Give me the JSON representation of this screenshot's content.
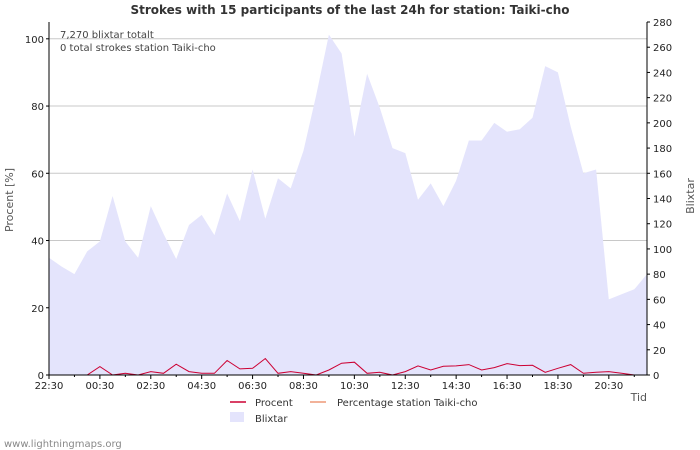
{
  "chart_data": {
    "type": "area",
    "title": "Strokes with 15 participants of the last 24h for station: Taiki-cho",
    "ylabel_left": "Procent   [%]",
    "ylabel_right": "Blixtar",
    "xlabel": "Tid",
    "ylim_left": [
      0,
      105
    ],
    "ylim_right": [
      0,
      280
    ],
    "yticks_left": [
      0,
      20,
      40,
      60,
      80,
      100
    ],
    "yticks_right": [
      0,
      20,
      40,
      60,
      80,
      100,
      120,
      140,
      160,
      180,
      200,
      220,
      240,
      260,
      280
    ],
    "x_tick_labels": [
      "22:30",
      "00:30",
      "02:30",
      "04:30",
      "06:30",
      "08:30",
      "10:30",
      "12:30",
      "14:30",
      "16:30",
      "18:30",
      "20:30"
    ],
    "x_range_hours": [
      0,
      23.5
    ],
    "annotations": [
      "7,270 blixtar totalt",
      "0 total strokes station Taiki-cho"
    ],
    "series": [
      {
        "name": "Blixtar",
        "axis": "right",
        "color": "#e4e4fc",
        "x": [
          0,
          0.5,
          1,
          1.5,
          2,
          2.5,
          3,
          3.5,
          4,
          4.5,
          5,
          5.5,
          6,
          6.5,
          7,
          7.5,
          8,
          8.5,
          9,
          9.5,
          10,
          10.5,
          11,
          11.5,
          12,
          12.5,
          13,
          13.5,
          14,
          14.5,
          15,
          15.5,
          16,
          16.5,
          17,
          17.5,
          18,
          18.5,
          19,
          19.5,
          20,
          20.5,
          21,
          21.5,
          22,
          22.5,
          23,
          23.5
        ],
        "values": [
          93,
          86,
          80,
          98,
          106,
          142,
          106,
          93,
          134,
          112,
          92,
          119,
          127,
          111,
          144,
          122,
          163,
          124,
          156,
          148,
          178,
          222,
          270,
          255,
          189,
          239,
          212,
          180,
          176,
          139,
          152,
          134,
          154,
          186,
          186,
          200,
          193,
          195,
          204,
          245,
          240,
          197,
          160,
          163,
          60,
          64,
          68,
          80
        ]
      },
      {
        "name": "Procent",
        "axis": "left",
        "color": "#cc0033",
        "x": [
          0,
          0.5,
          1,
          1.5,
          2,
          2.5,
          3,
          3.5,
          4,
          4.5,
          5,
          5.5,
          6,
          6.5,
          7,
          7.5,
          8,
          8.5,
          9,
          9.5,
          10,
          10.5,
          11,
          11.5,
          12,
          12.5,
          13,
          13.5,
          14,
          14.5,
          15,
          15.5,
          16,
          16.5,
          17,
          17.5,
          18,
          18.5,
          19,
          19.5,
          20,
          20.5,
          21,
          21.5,
          22,
          22.5,
          23,
          23.5
        ],
        "values": [
          0,
          0,
          0,
          0,
          2.5,
          0,
          0.5,
          0,
          1,
          0.5,
          3.2,
          1,
          0.5,
          0.5,
          4.3,
          1.8,
          2,
          4.9,
          0.5,
          1,
          0.5,
          0,
          1.5,
          3.5,
          3.8,
          0.5,
          0.8,
          0,
          1,
          2.7,
          1.5,
          2.6,
          2.7,
          3.1,
          1.5,
          2.2,
          3.4,
          2.8,
          2.9,
          0.8,
          2,
          3.1,
          0.5,
          0.8,
          1,
          0.5,
          0,
          0
        ]
      },
      {
        "name": "Percentage station Taiki-cho",
        "axis": "left",
        "color": "#ee9977",
        "x": [],
        "values": []
      }
    ],
    "legend": [
      {
        "label": "Procent",
        "kind": "line",
        "color": "#cc0033"
      },
      {
        "label": "Percentage station Taiki-cho",
        "kind": "line",
        "color": "#ee9977"
      },
      {
        "label": "Blixtar",
        "kind": "area",
        "color": "#e4e4fc"
      }
    ]
  },
  "footer": "www.lightningmaps.org"
}
